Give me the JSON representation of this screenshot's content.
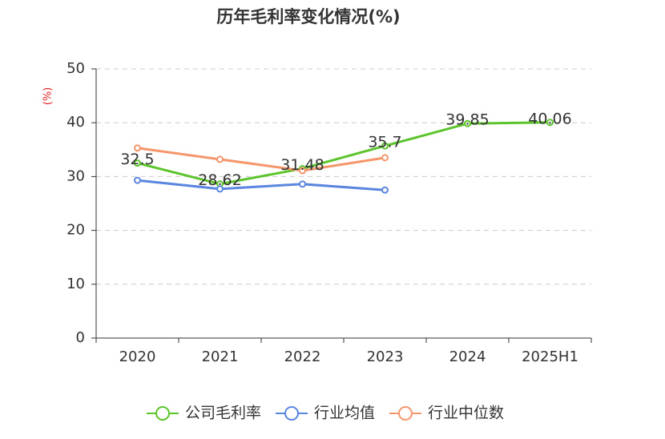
{
  "chart_data": {
    "type": "line",
    "title": "历年毛利率变化情况(%)",
    "y_label": "(%)",
    "categories": [
      "2020",
      "2021",
      "2022",
      "2023",
      "2024",
      "2025H1"
    ],
    "series": [
      {
        "name": "公司毛利率",
        "color": "#5cc42b",
        "show_labels": true,
        "values": [
          32.5,
          28.62,
          31.48,
          35.7,
          39.85,
          40.06
        ]
      },
      {
        "name": "行业均值",
        "color": "#5b86e0",
        "show_labels": false,
        "values": [
          29.3,
          27.7,
          28.6,
          27.5,
          null,
          null
        ]
      },
      {
        "name": "行业中位数",
        "color": "#f5956a",
        "show_labels": false,
        "values": [
          35.3,
          33.2,
          31.1,
          33.5,
          null,
          null
        ]
      }
    ],
    "ylim": [
      0,
      50
    ],
    "yticks": [
      0,
      10,
      20,
      30,
      40,
      50
    ],
    "grid": true,
    "legend": "bottom"
  }
}
